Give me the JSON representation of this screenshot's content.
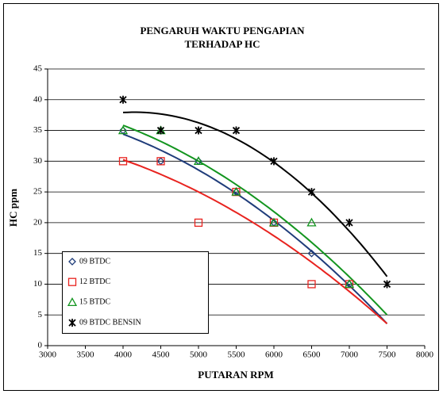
{
  "chart_data": {
    "type": "scatter",
    "title": [
      "PENGARUH WAKTU PENGAPIAN",
      "TERHADAP HC"
    ],
    "x_label": "PUTARAN RPM",
    "y_label": "HC ppm",
    "xlim": [
      3000,
      8000
    ],
    "xticks": [
      3000,
      3500,
      4000,
      4500,
      5000,
      5500,
      6000,
      6500,
      7000,
      7500,
      8000
    ],
    "ylim": [
      0,
      45
    ],
    "yticks": [
      0,
      5,
      10,
      15,
      20,
      25,
      30,
      35,
      40,
      45
    ],
    "grid": true,
    "legend": "lower left",
    "trendline": "polynomial-2",
    "series": [
      {
        "name": "09 BTDC",
        "color": "#1f3c7a",
        "marker": "diamond",
        "x": [
          4000,
          4500,
          5000,
          5500,
          6000,
          6500,
          7000
        ],
        "values": [
          35,
          30,
          30,
          25,
          20,
          15,
          10
        ]
      },
      {
        "name": "12 BTDC",
        "color": "#e8231f",
        "marker": "square",
        "x": [
          4000,
          4500,
          5000,
          5500,
          6000,
          6500,
          7000
        ],
        "values": [
          30,
          30,
          20,
          25,
          20,
          10,
          10
        ]
      },
      {
        "name": "15 BTDC",
        "color": "#13951f",
        "marker": "triangle",
        "x": [
          4000,
          4500,
          5000,
          5500,
          6000,
          6500,
          7000
        ],
        "values": [
          35,
          35,
          30,
          25,
          20,
          20,
          10
        ]
      },
      {
        "name": "09 BTDC BENSIN",
        "color": "#000000",
        "marker": "star",
        "x": [
          4000,
          4500,
          5000,
          5500,
          6000,
          6500,
          7000,
          7500
        ],
        "values": [
          40,
          35,
          35,
          35,
          30,
          25,
          20,
          10
        ]
      }
    ]
  }
}
